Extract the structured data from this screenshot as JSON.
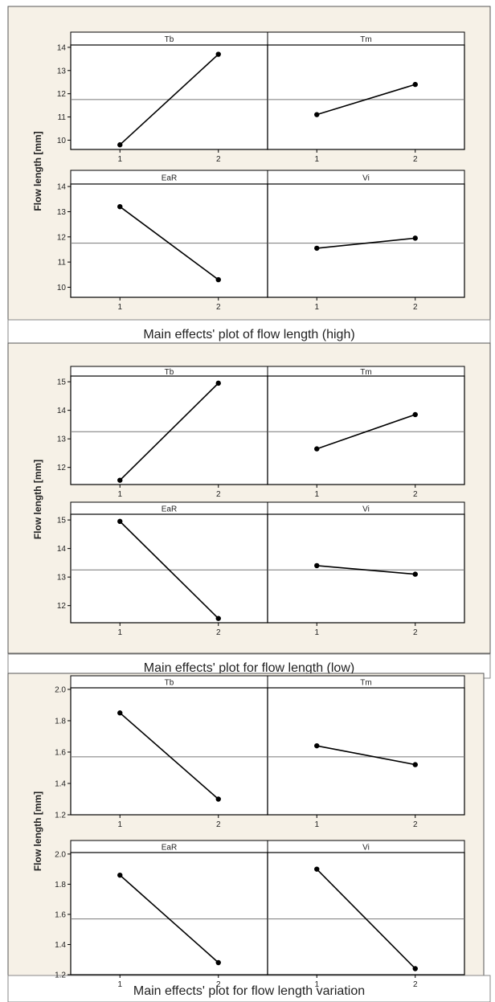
{
  "chart_data": [
    {
      "type": "line",
      "caption": "Main effects' plot of flow length (high)",
      "ylabel": "Flow length [mm]",
      "ylim": [
        9.6,
        14.1
      ],
      "yticks": [
        "10",
        "11",
        "12",
        "13",
        "14"
      ],
      "xticks": [
        "1",
        "2"
      ],
      "grand_mean": 11.75,
      "panels": [
        {
          "name": "Tb",
          "values": [
            9.8,
            13.7
          ]
        },
        {
          "name": "Tm",
          "values": [
            11.1,
            12.4
          ]
        },
        {
          "name": "EaR",
          "values": [
            13.2,
            10.3
          ]
        },
        {
          "name": "Vi",
          "values": [
            11.55,
            11.95
          ]
        }
      ]
    },
    {
      "type": "line",
      "caption": "Main effects' plot for flow length (low)",
      "ylabel": "Flow length [mm]",
      "ylim": [
        11.4,
        15.2
      ],
      "yticks": [
        "12",
        "13",
        "14",
        "15"
      ],
      "xticks": [
        "1",
        "2"
      ],
      "grand_mean": 13.25,
      "panels": [
        {
          "name": "Tb",
          "values": [
            11.55,
            14.95
          ]
        },
        {
          "name": "Tm",
          "values": [
            12.65,
            13.85
          ]
        },
        {
          "name": "EaR",
          "values": [
            14.95,
            11.55
          ]
        },
        {
          "name": "Vi",
          "values": [
            13.4,
            13.1
          ]
        }
      ]
    },
    {
      "type": "line",
      "caption": "Main effects' plot for flow length variation",
      "ylabel": "Flow length [mm]",
      "ylim": [
        1.2,
        2.01
      ],
      "yticks": [
        "1.2",
        "1.4",
        "1.6",
        "1.8",
        "2.0"
      ],
      "xticks": [
        "1",
        "2"
      ],
      "grand_mean": 1.57,
      "panels": [
        {
          "name": "Tb",
          "values": [
            1.85,
            1.3
          ]
        },
        {
          "name": "Tm",
          "values": [
            1.64,
            1.52
          ]
        },
        {
          "name": "EaR",
          "values": [
            1.86,
            1.28
          ]
        },
        {
          "name": "Vi",
          "values": [
            1.9,
            1.24
          ]
        }
      ]
    }
  ],
  "colors": {
    "frame_fill": "#f6f1e7",
    "plot_fill": "#ffffff",
    "line": "#000000",
    "text": "#222222"
  }
}
